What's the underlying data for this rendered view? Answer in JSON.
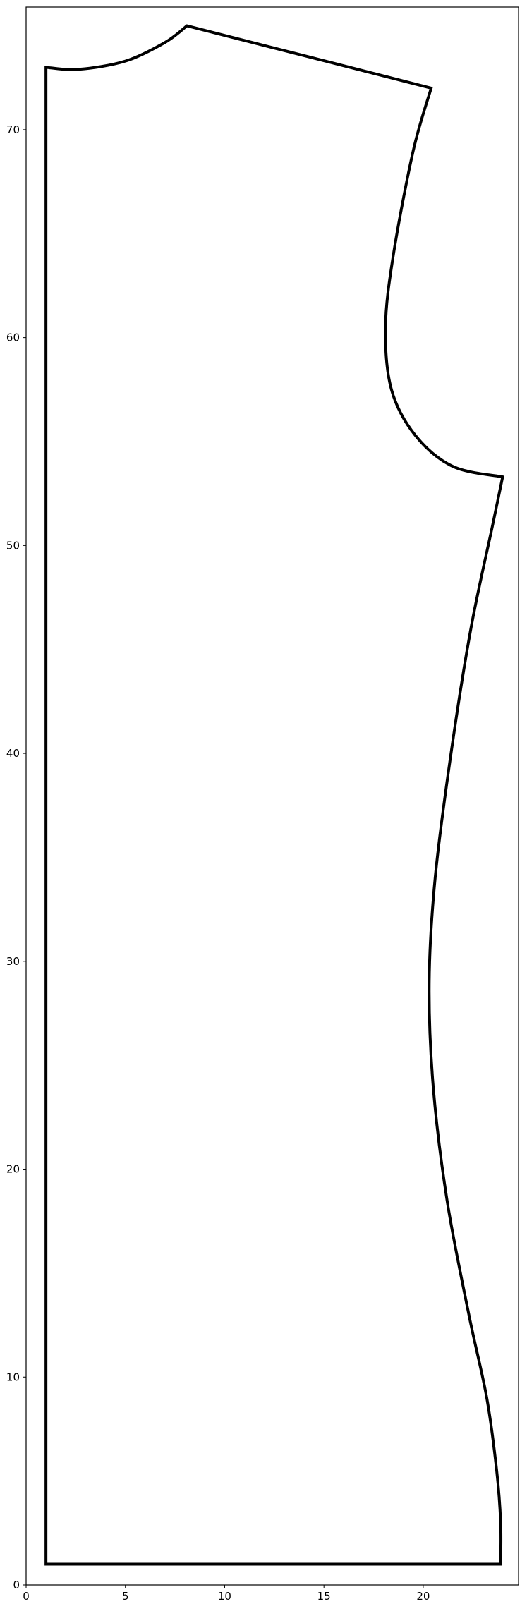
{
  "chart_data": {
    "type": "line",
    "title": "",
    "xlabel": "",
    "ylabel": "",
    "xlim": [
      0,
      24.8
    ],
    "ylim": [
      0,
      75.9
    ],
    "grid": false,
    "x_ticks": [
      0,
      5,
      10,
      15,
      20
    ],
    "y_ticks": [
      0,
      10,
      20,
      30,
      40,
      50,
      60,
      70
    ],
    "series": [
      {
        "color": "#000000",
        "closed": true,
        "x": [
          1.0,
          2.6,
          5.0,
          7.0,
          8.1,
          20.4,
          19.5,
          18.5,
          18.1,
          18.4,
          19.6,
          21.5,
          24.0,
          23.5,
          22.4,
          21.4,
          20.6,
          20.3,
          20.5,
          21.2,
          22.3,
          23.2,
          23.7,
          23.9,
          23.9,
          20.0,
          10.0,
          1.0,
          1.0,
          1.0,
          1.0,
          1.0,
          1.0,
          1.0,
          1.0
        ],
        "y": [
          73.0,
          72.9,
          73.3,
          74.2,
          75.0,
          72.0,
          69.0,
          64.0,
          60.5,
          57.5,
          55.3,
          53.8,
          53.3,
          51.0,
          46.0,
          40.0,
          34.0,
          29.0,
          24.0,
          18.5,
          13.0,
          9.0,
          5.5,
          3.0,
          1.0,
          1.0,
          1.0,
          1.0,
          10.0,
          20.0,
          30.0,
          40.0,
          50.0,
          60.0,
          70.0
        ]
      }
    ]
  }
}
